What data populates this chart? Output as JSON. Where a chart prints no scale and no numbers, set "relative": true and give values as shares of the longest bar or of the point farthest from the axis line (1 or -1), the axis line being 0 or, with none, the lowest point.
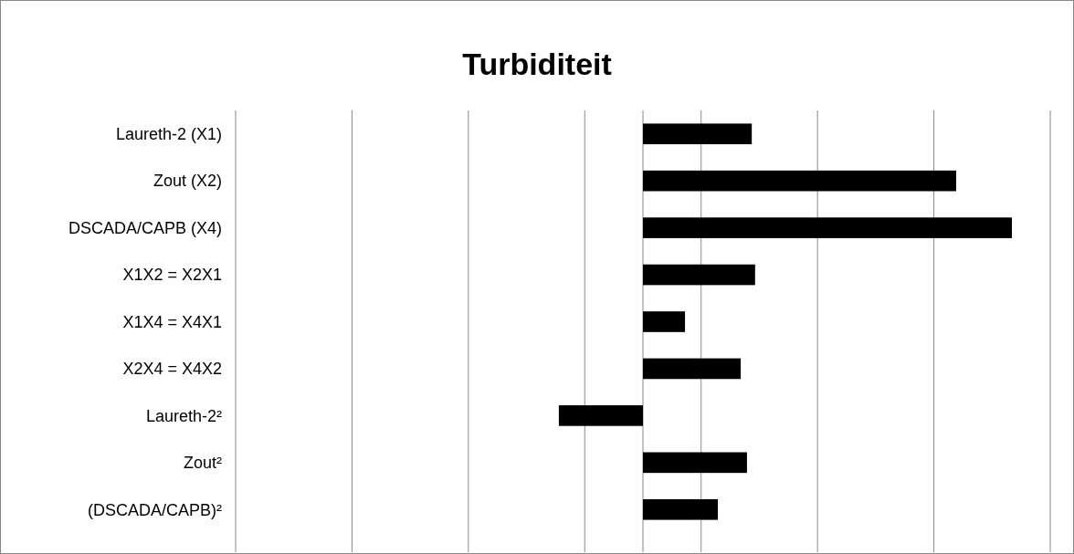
{
  "chart_data": {
    "type": "bar",
    "title": "Turbiditeit",
    "orientation": "horizontal",
    "relative": true,
    "grid": "x",
    "color": "#000000",
    "categories": [
      "Laureth-2 (X1)",
      "Zout (X2)",
      "DSCADA/CAPB (X4)",
      "X1X2 = X2X1",
      "X1X4 = X4X1",
      "X2X4 = X4X2",
      "Laureth-2²",
      "Zout²",
      "(DSCADA/CAPB)²"
    ],
    "values": [
      0.295,
      0.849,
      1,
      0.304,
      0.114,
      0.265,
      -0.228,
      0.282,
      0.203
    ]
  }
}
